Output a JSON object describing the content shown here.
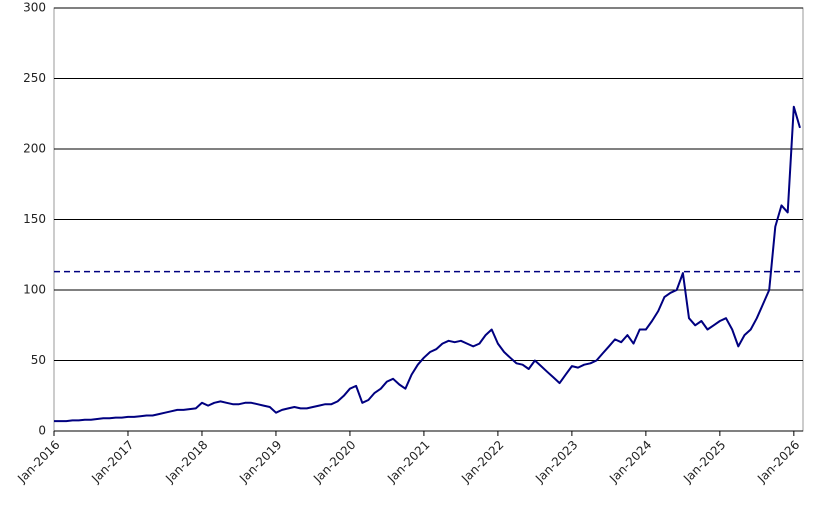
{
  "chart_data": {
    "type": "line",
    "x": [
      "2016-01",
      "2016-02",
      "2016-03",
      "2016-04",
      "2016-05",
      "2016-06",
      "2016-07",
      "2016-08",
      "2016-09",
      "2016-10",
      "2016-11",
      "2016-12",
      "2017-01",
      "2017-02",
      "2017-03",
      "2017-04",
      "2017-05",
      "2017-06",
      "2017-07",
      "2017-08",
      "2017-09",
      "2017-10",
      "2017-11",
      "2017-12",
      "2018-01",
      "2018-02",
      "2018-03",
      "2018-04",
      "2018-05",
      "2018-06",
      "2018-07",
      "2018-08",
      "2018-09",
      "2018-10",
      "2018-11",
      "2018-12",
      "2019-01",
      "2019-02",
      "2019-03",
      "2019-04",
      "2019-05",
      "2019-06",
      "2019-07",
      "2019-08",
      "2019-09",
      "2019-10",
      "2019-11",
      "2019-12",
      "2020-01",
      "2020-02",
      "2020-03",
      "2020-04",
      "2020-05",
      "2020-06",
      "2020-07",
      "2020-08",
      "2020-09",
      "2020-10",
      "2020-11",
      "2020-12",
      "2021-01",
      "2021-02",
      "2021-03",
      "2021-04",
      "2021-05",
      "2021-06",
      "2021-07",
      "2021-08",
      "2021-09",
      "2021-10",
      "2021-11",
      "2021-12",
      "2022-01",
      "2022-02",
      "2022-03",
      "2022-04",
      "2022-05",
      "2022-06",
      "2022-07",
      "2022-08",
      "2022-09",
      "2022-10",
      "2022-11",
      "2022-12",
      "2023-01",
      "2023-02",
      "2023-03",
      "2023-04",
      "2023-05",
      "2023-06",
      "2023-07",
      "2023-08",
      "2023-09",
      "2023-10",
      "2023-11",
      "2023-12",
      "2024-01",
      "2024-02",
      "2024-03",
      "2024-04",
      "2024-05",
      "2024-06",
      "2024-07",
      "2024-08",
      "2024-09",
      "2024-10",
      "2024-11",
      "2024-12",
      "2025-01",
      "2025-02",
      "2025-03",
      "2025-04",
      "2025-05",
      "2025-06",
      "2025-07",
      "2025-08",
      "2025-09",
      "2025-10",
      "2025-11",
      "2025-12",
      "2026-01",
      "2026-02"
    ],
    "series": [
      {
        "color": "#000080",
        "values": [
          7,
          7,
          7,
          7.5,
          7.5,
          8,
          8,
          8.5,
          9,
          9,
          9.5,
          9.5,
          10,
          10,
          10.5,
          11,
          11,
          12,
          13,
          14,
          15,
          15,
          15.5,
          16,
          20,
          18,
          20,
          21,
          20,
          19,
          19,
          20,
          20,
          19,
          18,
          17,
          13,
          15,
          16,
          17,
          16,
          16,
          17,
          18,
          19,
          19,
          21,
          25,
          30,
          32,
          20,
          22,
          27,
          30,
          35,
          37,
          33,
          30,
          40,
          47,
          52,
          56,
          58,
          62,
          64,
          63,
          64,
          62,
          60,
          62,
          68,
          72,
          62,
          56,
          52,
          48,
          47,
          44,
          50,
          46,
          42,
          38,
          34,
          40,
          46,
          45,
          47,
          48,
          50,
          55,
          60,
          65,
          63,
          68,
          62,
          72,
          72,
          78,
          85,
          95,
          98,
          100,
          112,
          80,
          75,
          78,
          72,
          75,
          78,
          80,
          72,
          60,
          68,
          72,
          80,
          90,
          100,
          145,
          160,
          155,
          230,
          215
        ]
      }
    ],
    "hline": 113,
    "hline_color": "#000080",
    "xlim": [
      "2016-01",
      "2026-02"
    ],
    "xticks": [
      {
        "value": "2016-01",
        "label": "Jan-2016"
      },
      {
        "value": "2017-01",
        "label": "Jan-2017"
      },
      {
        "value": "2018-01",
        "label": "Jan-2018"
      },
      {
        "value": "2019-01",
        "label": "Jan-2019"
      },
      {
        "value": "2020-01",
        "label": "Jan-2020"
      },
      {
        "value": "2021-01",
        "label": "Jan-2021"
      },
      {
        "value": "2022-01",
        "label": "Jan-2022"
      },
      {
        "value": "2023-01",
        "label": "Jan-2023"
      },
      {
        "value": "2024-01",
        "label": "Jan-2024"
      },
      {
        "value": "2025-01",
        "label": "Jan-2025"
      },
      {
        "value": "2026-01",
        "label": "Jan-2026"
      }
    ],
    "ylim": [
      0,
      300
    ],
    "yticks": [
      0,
      50,
      100,
      150,
      200,
      250,
      300
    ],
    "grid": true
  }
}
